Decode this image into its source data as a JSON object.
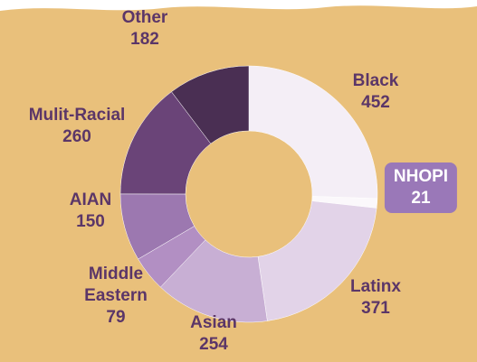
{
  "chart_data": {
    "type": "donut",
    "categories": [
      "Black",
      "NHOPI",
      "Latinx",
      "Asian",
      "Middle Eastern",
      "AIAN",
      "Mulit-Racial",
      "Other"
    ],
    "values": [
      452,
      21,
      371,
      254,
      79,
      150,
      260,
      182
    ],
    "colors": [
      "#f4eef6",
      "#fbf8fb",
      "#e2d3e8",
      "#c8afd4",
      "#b28fc3",
      "#9c78b0",
      "#6a4478",
      "#4a2f53"
    ]
  }
}
